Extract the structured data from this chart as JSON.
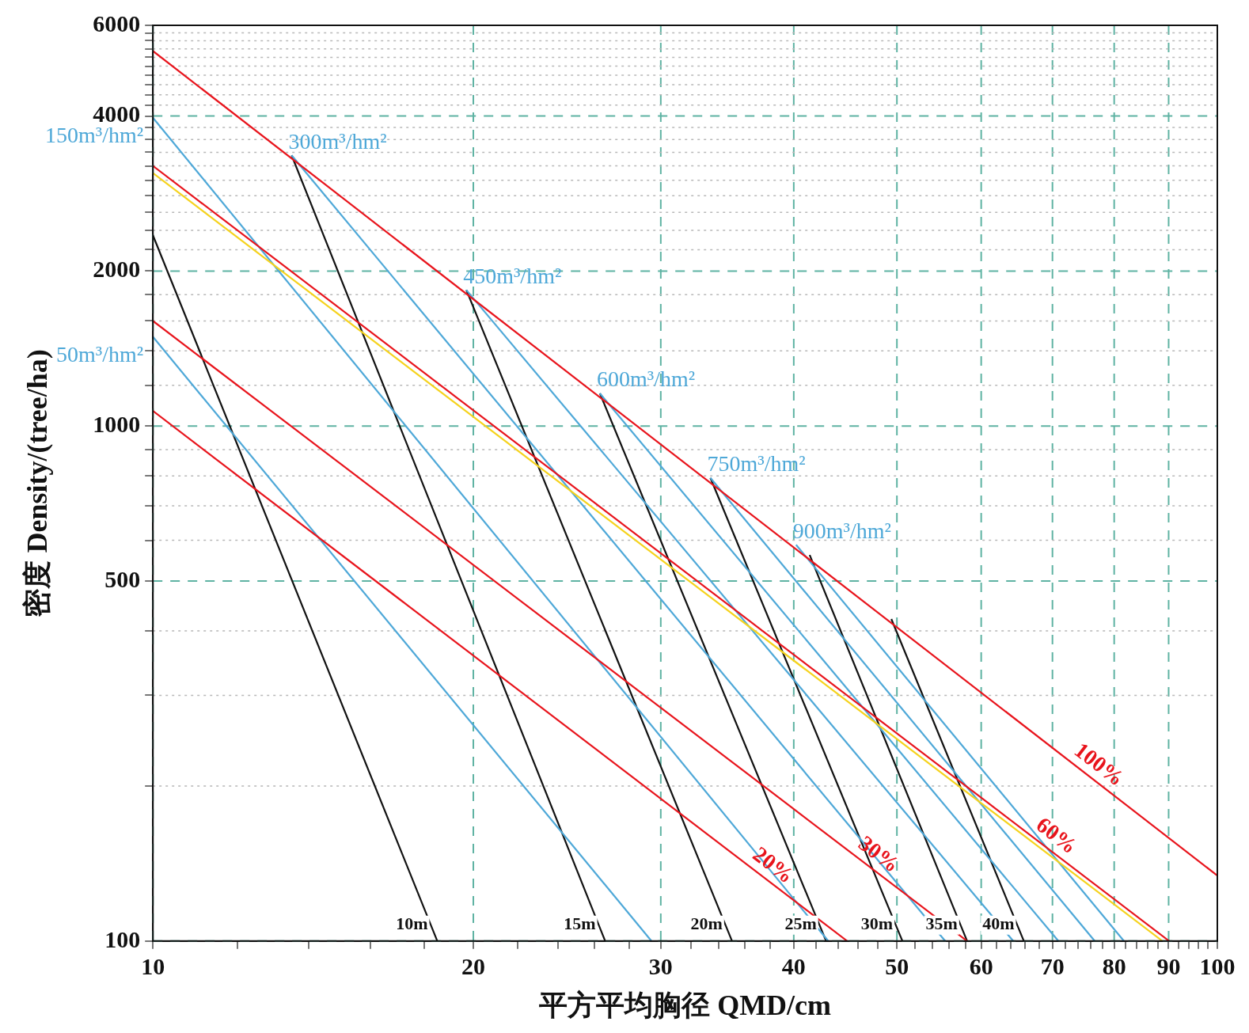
{
  "chart_data": {
    "type": "line",
    "xlabel": "平方平均胸径 QMD/cm",
    "ylabel": "密度 Density/(tree/ha)",
    "log": "xy",
    "grid": true,
    "legend": false,
    "marker": "none",
    "line_style": "solid",
    "xlim": [
      10,
      100
    ],
    "ylim": [
      100,
      6000
    ],
    "xticks": [
      10,
      {
        "value": 12,
        "label": null
      },
      {
        "value": 14,
        "label": null
      },
      {
        "value": 16,
        "label": null
      },
      {
        "value": 18,
        "label": null
      },
      20,
      {
        "value": 22,
        "label": null
      },
      {
        "value": 24,
        "label": null
      },
      {
        "value": 26,
        "label": null
      },
      {
        "value": 28,
        "label": null
      },
      30,
      {
        "value": 32,
        "label": null
      },
      {
        "value": 34,
        "label": null
      },
      {
        "value": 36,
        "label": null
      },
      {
        "value": 38,
        "label": null
      },
      40,
      {
        "value": 42,
        "label": null
      },
      {
        "value": 44,
        "label": null
      },
      {
        "value": 46,
        "label": null
      },
      {
        "value": 48,
        "label": null
      },
      50,
      {
        "value": 52,
        "label": null
      },
      {
        "value": 54,
        "label": null
      },
      {
        "value": 56,
        "label": null
      },
      {
        "value": 58,
        "label": null
      },
      60,
      {
        "value": 62,
        "label": null
      },
      {
        "value": 64,
        "label": null
      },
      {
        "value": 66,
        "label": null
      },
      {
        "value": 68,
        "label": null
      },
      70,
      {
        "value": 72,
        "label": null
      },
      {
        "value": 74,
        "label": null
      },
      {
        "value": 76,
        "label": null
      },
      {
        "value": 78,
        "label": null
      },
      80,
      {
        "value": 82,
        "label": null
      },
      {
        "value": 84,
        "label": null
      },
      {
        "value": 86,
        "label": null
      },
      {
        "value": 88,
        "label": null
      },
      90,
      {
        "value": 92,
        "label": null
      },
      {
        "value": 94,
        "label": null
      },
      {
        "value": 96,
        "label": null
      },
      {
        "value": 98,
        "label": null
      },
      100
    ],
    "yticks": [
      100,
      {
        "value": 200,
        "label": null
      },
      {
        "value": 300,
        "label": null
      },
      {
        "value": 400,
        "label": null
      },
      500,
      {
        "value": 600,
        "label": null
      },
      {
        "value": 700,
        "label": null
      },
      {
        "value": 800,
        "label": null
      },
      {
        "value": 900,
        "label": null
      },
      1000,
      {
        "value": 1200,
        "label": null
      },
      {
        "value": 1400,
        "label": null
      },
      {
        "value": 1600,
        "label": null
      },
      {
        "value": 1800,
        "label": null
      },
      2000,
      {
        "value": 2200,
        "label": null
      },
      {
        "value": 2400,
        "label": null
      },
      {
        "value": 2600,
        "label": null
      },
      {
        "value": 2800,
        "label": null
      },
      {
        "value": 3000,
        "label": null
      },
      {
        "value": 3200,
        "label": null
      },
      {
        "value": 3400,
        "label": null
      },
      {
        "value": 3600,
        "label": null
      },
      {
        "value": 3800,
        "label": null
      },
      4000,
      {
        "value": 4200,
        "label": null
      },
      {
        "value": 4400,
        "label": null
      },
      {
        "value": 4600,
        "label": null
      },
      {
        "value": 4800,
        "label": null
      },
      {
        "value": 5000,
        "label": null
      },
      {
        "value": 5200,
        "label": null
      },
      {
        "value": 5400,
        "label": null
      },
      {
        "value": 5600,
        "label": null
      },
      {
        "value": 5800,
        "label": null
      },
      6000
    ],
    "series": [
      {
        "name": "100%",
        "color": "#e8141c",
        "x": [
          10,
          100
        ],
        "values": [
          5350,
          134
        ]
      },
      {
        "name": "60%",
        "color": "#e8141c",
        "x": [
          10,
          90.1
        ],
        "values": [
          3200,
          100
        ]
      },
      {
        "color": "#f5d21c",
        "x": [
          10,
          88.8
        ],
        "values": [
          3100,
          100
        ]
      },
      {
        "name": "30%",
        "color": "#e8141c",
        "x": [
          10,
          58.2
        ],
        "values": [
          1600,
          100
        ]
      },
      {
        "name": "20%",
        "color": "#e8141c",
        "x": [
          10,
          44.9
        ],
        "values": [
          1070,
          100
        ]
      },
      {
        "name": "50m³/hm²",
        "color": "#4ea8d8",
        "x": [
          10,
          29.4
        ],
        "values": [
          1490,
          100
        ]
      },
      {
        "name": "150m³/hm²",
        "color": "#4ea8d8",
        "x": [
          10,
          43.1
        ],
        "values": [
          3970,
          100
        ]
      },
      {
        "name": "300m³/hm²",
        "color": "#4ea8d8",
        "x": [
          13.5,
          55.5
        ],
        "values": [
          3355,
          100
        ]
      },
      {
        "name": "450m³/hm²",
        "color": "#4ea8d8",
        "x": [
          19.7,
          64.3
        ],
        "values": [
          1837,
          100
        ]
      },
      {
        "name": "600m³/hm²",
        "color": "#4ea8d8",
        "x": [
          26.3,
          70.9
        ],
        "values": [
          1157,
          100
        ]
      },
      {
        "name": "750m³/hm²",
        "color": "#4ea8d8",
        "x": [
          33.4,
          76.7
        ],
        "values": [
          793,
          100
        ]
      },
      {
        "name": "900m³/hm²",
        "color": "#4ea8d8",
        "x": [
          40.2,
          81.7
        ],
        "values": [
          588,
          100
        ]
      },
      {
        "name": "10m",
        "color": "#111111",
        "x": [
          10,
          18.5
        ],
        "values": [
          2347,
          100
        ]
      },
      {
        "name": "15m",
        "color": "#111111",
        "x": [
          13.5,
          26.6
        ],
        "values": [
          3355,
          100
        ]
      },
      {
        "name": "20m",
        "color": "#111111",
        "x": [
          19.7,
          35.0
        ],
        "values": [
          1837,
          100
        ]
      },
      {
        "name": "25m",
        "color": "#111111",
        "x": [
          26.3,
          42.9
        ],
        "values": [
          1157,
          100
        ]
      },
      {
        "name": "30m",
        "color": "#111111",
        "x": [
          33.4,
          50.6
        ],
        "values": [
          793,
          100
        ]
      },
      {
        "name": "35m",
        "color": "#111111",
        "x": [
          41.4,
          58.2
        ],
        "values": [
          562,
          100
        ]
      },
      {
        "name": "40m",
        "color": "#111111",
        "x": [
          49.4,
          65.8
        ],
        "values": [
          422,
          100
        ]
      }
    ]
  }
}
